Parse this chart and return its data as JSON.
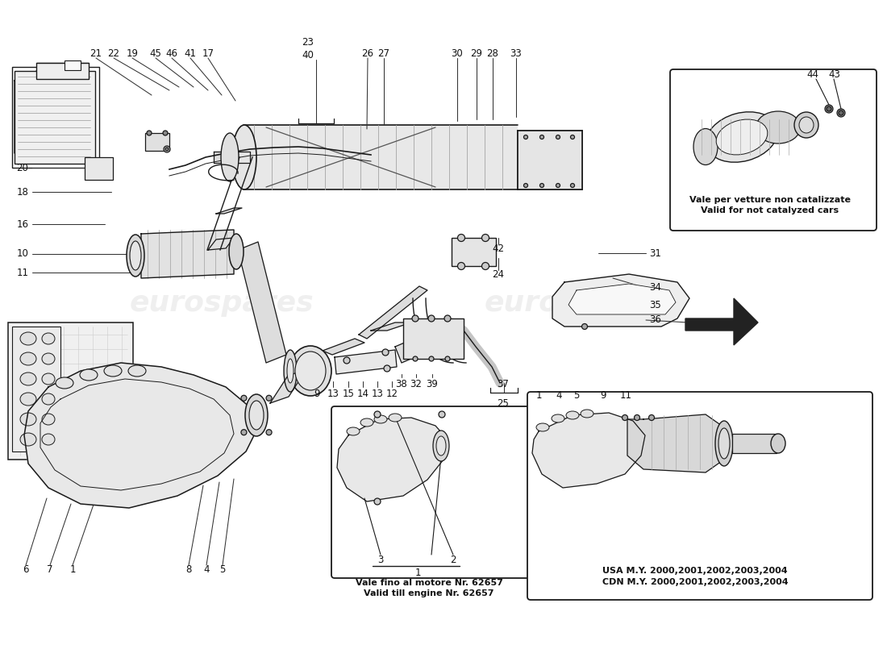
{
  "bg_color": "#ffffff",
  "fig_width": 11.0,
  "fig_height": 8.0,
  "lc": "#1a1a1a",
  "tc": "#111111",
  "wm_color": "#cccccc",
  "wm_alpha": 0.3,
  "box1_line1": "Vale fino al motore Nr. 62657",
  "box1_line2": "Valid till engine Nr. 62657",
  "box2_line1": "USA M.Y. 2000,2001,2002,2003,2004",
  "box2_line2": "CDN M.Y. 2000,2001,2002,2003,2004",
  "box3_line1": "Vale per vetture non catalizzate",
  "box3_line2": "Valid for not catalyzed cars",
  "top_nums": [
    [
      "21",
      119,
      62
    ],
    [
      "22",
      141,
      62
    ],
    [
      "19",
      164,
      62
    ],
    [
      "45",
      193,
      62
    ],
    [
      "46",
      213,
      62
    ],
    [
      "41",
      236,
      62
    ],
    [
      "17",
      258,
      62
    ],
    [
      "23",
      382,
      48
    ],
    [
      "40",
      382,
      65
    ],
    [
      "26",
      456,
      62
    ],
    [
      "27",
      476,
      62
    ],
    [
      "30",
      566,
      62
    ],
    [
      "29",
      591,
      62
    ],
    [
      "28",
      611,
      62
    ],
    [
      "33",
      641,
      62
    ]
  ],
  "left_nums": [
    [
      "20",
      28,
      202
    ],
    [
      "18",
      28,
      232
    ],
    [
      "16",
      28,
      278
    ],
    [
      "10",
      28,
      312
    ],
    [
      "11",
      28,
      334
    ]
  ],
  "right_nums": [
    [
      "31",
      810,
      314
    ],
    [
      "34",
      810,
      357
    ],
    [
      "35",
      810,
      377
    ],
    [
      "36",
      810,
      397
    ]
  ],
  "center_nums": [
    [
      "42",
      618,
      308
    ],
    [
      "24",
      618,
      340
    ],
    [
      "9",
      393,
      488
    ],
    [
      "13",
      413,
      488
    ],
    [
      "15",
      432,
      488
    ],
    [
      "14",
      450,
      488
    ],
    [
      "13",
      468,
      488
    ],
    [
      "12",
      486,
      488
    ]
  ],
  "botleft_nums": [
    [
      "6",
      32,
      706
    ],
    [
      "7",
      62,
      706
    ],
    [
      "1",
      90,
      706
    ],
    [
      "8",
      234,
      706
    ],
    [
      "4",
      256,
      706
    ],
    [
      "5",
      276,
      706
    ]
  ],
  "botctr_nums": [
    [
      "37",
      620,
      486
    ],
    [
      "25",
      620,
      506
    ],
    [
      "38",
      498,
      476
    ],
    [
      "32",
      516,
      476
    ],
    [
      "39",
      536,
      476
    ]
  ]
}
